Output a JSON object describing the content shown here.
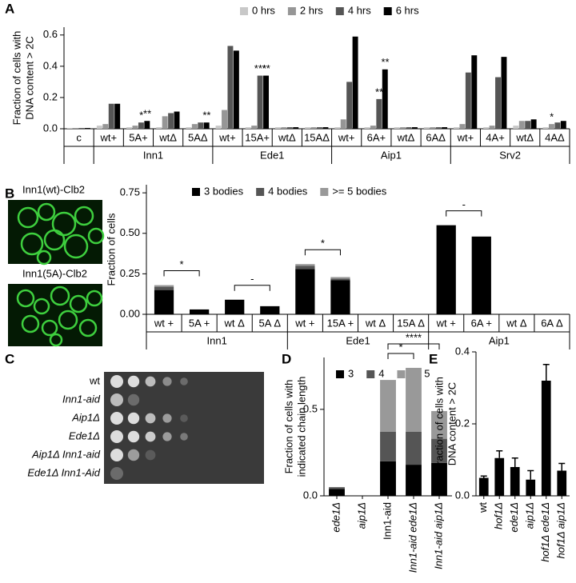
{
  "panels": [
    "A",
    "B",
    "C",
    "D",
    "E"
  ],
  "micrographs": [
    "Inn1(wt)-Clb2",
    "Inn1(5A)-Clb2"
  ],
  "spot_assay": {
    "strains": [
      "wt",
      "Inn1-aid",
      "Aip1Δ",
      "Ede1Δ",
      "Aip1Δ Inn1-aid",
      "Ede1Δ Inn1-Aid"
    ]
  },
  "chart_data": [
    {
      "type": "grouped_bar",
      "y_label": [
        "Fraction of cells with",
        "DNA content > 2C"
      ],
      "categories": [
        "c",
        "wt+",
        "5A+",
        "wtΔ",
        "5AΔ",
        "wt+",
        "15A+",
        "wtΔ",
        "15AΔ",
        "wt+",
        "6A+",
        "wtΔ",
        "6AΔ",
        "wt+",
        "4A+",
        "wtΔ",
        "4AΔ"
      ],
      "groups": [
        {
          "name": "Inn1",
          "from": 1,
          "to": 4
        },
        {
          "name": "Ede1",
          "from": 5,
          "to": 8
        },
        {
          "name": "Aip1",
          "from": 9,
          "to": 12
        },
        {
          "name": "Srv2",
          "from": 13,
          "to": 16
        }
      ],
      "series": [
        {
          "name": "0 hrs",
          "color": "#c8c8c8",
          "values": [
            0.005,
            0.02,
            0.01,
            0.01,
            0.01,
            0.02,
            0.01,
            0.01,
            0.01,
            0.01,
            0.01,
            0.01,
            0.01,
            0.01,
            0.01,
            0.02,
            0.01
          ]
        },
        {
          "name": "2 hrs",
          "color": "#969696",
          "values": [
            0.005,
            0.03,
            0.02,
            0.08,
            0.03,
            0.12,
            0.02,
            0.01,
            0.01,
            0.06,
            0.02,
            0.01,
            0.01,
            0.03,
            0.02,
            0.05,
            0.03
          ]
        },
        {
          "name": "4 hrs",
          "color": "#555555",
          "values": [
            0.005,
            0.16,
            0.04,
            0.1,
            0.04,
            0.53,
            0.34,
            0.01,
            0.01,
            0.3,
            0.19,
            0.01,
            0.01,
            0.36,
            0.33,
            0.05,
            0.04
          ]
        },
        {
          "name": "6 hrs",
          "color": "#000000",
          "values": [
            0.005,
            0.16,
            0.05,
            0.11,
            0.04,
            0.5,
            0.34,
            0.01,
            0.01,
            0.59,
            0.38,
            0.01,
            0.01,
            0.47,
            0.46,
            0.06,
            0.05
          ]
        }
      ],
      "ylim": [
        0,
        0.65
      ],
      "yticks": [
        {
          "value": 0,
          "label": "0.0"
        },
        0.2,
        0.4,
        0.6
      ],
      "annotations": [
        {
          "category": 2,
          "series": 2,
          "text": "*"
        },
        {
          "category": 2,
          "series": 3,
          "text": "**"
        },
        {
          "category": 4,
          "series": 3,
          "text": "**"
        },
        {
          "category": 6,
          "series": 2,
          "text": "***"
        },
        {
          "category": 6,
          "series": 3,
          "text": "**"
        },
        {
          "category": 10,
          "series": 2,
          "text": "**"
        },
        {
          "category": 10,
          "series": 3,
          "text": "**"
        },
        {
          "category": 16,
          "series": 1,
          "text": "*"
        }
      ]
    },
    {
      "type": "stacked_bar",
      "y_label": [
        "Fraction of cells"
      ],
      "categories": [
        "wt +",
        "5A +",
        "wt Δ",
        "5A Δ",
        "wt +",
        "15A +",
        "wt Δ",
        "15A Δ",
        "wt +",
        "6A +",
        "wt Δ",
        "6A Δ"
      ],
      "groups": [
        {
          "name": "Inn1",
          "from": 0,
          "to": 3
        },
        {
          "name": "Ede1",
          "from": 4,
          "to": 7
        },
        {
          "name": "Aip1",
          "from": 8,
          "to": 11
        }
      ],
      "series": [
        {
          "name": "3 bodies",
          "color": "#000000",
          "values": [
            0.15,
            0.03,
            0.09,
            0.05,
            0.28,
            0.21,
            0,
            0,
            0.55,
            0.48,
            0,
            0
          ]
        },
        {
          "name": "4 bodies",
          "color": "#555555",
          "values": [
            0.02,
            0,
            0,
            0,
            0.02,
            0.01,
            0,
            0,
            0,
            0,
            0,
            0
          ]
        },
        {
          "name": ">= 5 bodies",
          "color": "#999999",
          "values": [
            0.01,
            0,
            0,
            0,
            0.01,
            0.01,
            0,
            0,
            0,
            0,
            0,
            0
          ]
        }
      ],
      "ylim": [
        0,
        0.8
      ],
      "yticks": [
        {
          "value": 0,
          "label": "0.00"
        },
        0.25,
        {
          "value": 0.5,
          "label": "0.50"
        },
        0.75
      ],
      "brackets": [
        {
          "from": 0,
          "to": 1,
          "text": "*"
        },
        {
          "from": 2,
          "to": 3,
          "text": "-"
        },
        {
          "from": 4,
          "to": 5,
          "text": "*"
        },
        {
          "from": 8,
          "to": 9,
          "text": "-"
        }
      ]
    },
    {
      "type": "stacked_bar",
      "y_label": [
        "Fraction of cells with",
        "indicated chain length"
      ],
      "categories": [
        "ede1Δ",
        "aip1Δ",
        "Inn1-aid",
        "Inn1-aid ede1Δ",
        "Inn1-aid aip1Δ"
      ],
      "series": [
        {
          "name": "3",
          "color": "#000000",
          "values": [
            0.04,
            0,
            0.2,
            0.18,
            0.19
          ]
        },
        {
          "name": "4",
          "color": "#555555",
          "values": [
            0.01,
            0,
            0.17,
            0.19,
            0.14
          ]
        },
        {
          "name": ">= 5",
          "color": "#999999",
          "values": [
            0,
            0,
            0.3,
            0.37,
            0.16
          ]
        }
      ],
      "ylim": [
        0,
        0.8
      ],
      "yticks": [
        {
          "value": 0,
          "label": "0.0"
        },
        0.5
      ],
      "brackets": [
        {
          "from": 2,
          "to": 3,
          "text": "*"
        },
        {
          "from": 2,
          "to": 4,
          "text": "****"
        }
      ]
    },
    {
      "type": "bar",
      "y_label": [
        "Fraction of cells with",
        "DNA content > 2C"
      ],
      "categories": [
        "wt",
        "hof1Δ",
        "ede1Δ",
        "aip1Δ",
        "hof1Δ ede1Δ",
        "hof1Δ aip1Δ"
      ],
      "values": [
        0.05,
        0.105,
        0.08,
        0.045,
        0.32,
        0.07
      ],
      "errors": [
        0.005,
        0.02,
        0.025,
        0.025,
        0.045,
        0.02
      ],
      "color": "#000000",
      "ylim": [
        0,
        0.4
      ],
      "yticks": [
        {
          "value": 0,
          "label": "0.0"
        },
        0.2,
        0.4
      ]
    }
  ]
}
